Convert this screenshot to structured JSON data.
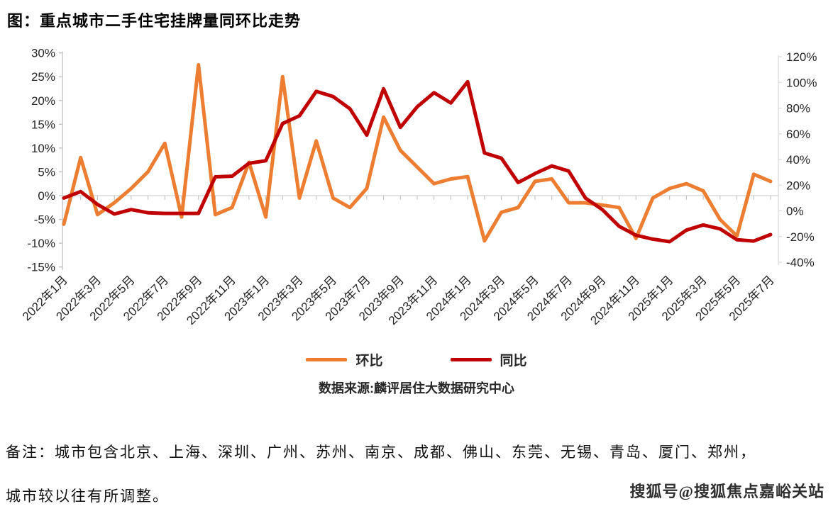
{
  "title": "图：重点城市二手住宅挂牌量同环比走势",
  "legend": {
    "mom_label": "环比",
    "yoy_label": "同比"
  },
  "source": "数据来源:麟评居住大数据研究中心",
  "note": {
    "line1": "备注：城市包含北京、上海、深圳、广州、苏州、南京、成都、佛山、东莞、无锡、青岛、厦门、郑州，",
    "line2": "城市较以往有所调整。"
  },
  "watermark": "搜狐号@搜狐焦点嘉峪关站",
  "colors": {
    "mom": "#ED7D31",
    "yoy": "#C00000",
    "axis_line": "#BFBFBF",
    "zero_line": "#D9D9D9",
    "tick_text": "#262626"
  },
  "chart_data": {
    "type": "line",
    "title": "图：重点城市二手住宅挂牌量同环比走势",
    "x": [
      "2022年1月",
      "2022年2月",
      "2022年3月",
      "2022年4月",
      "2022年5月",
      "2022年6月",
      "2022年7月",
      "2022年8月",
      "2022年9月",
      "2022年10月",
      "2022年11月",
      "2022年12月",
      "2023年1月",
      "2023年2月",
      "2023年3月",
      "2023年4月",
      "2023年5月",
      "2023年6月",
      "2023年7月",
      "2023年8月",
      "2023年9月",
      "2023年10月",
      "2023年11月",
      "2023年12月",
      "2024年1月",
      "2024年2月",
      "2024年3月",
      "2024年4月",
      "2024年5月",
      "2024年6月",
      "2024年7月",
      "2024年8月",
      "2024年9月",
      "2024年10月",
      "2024年11月",
      "2024年12月",
      "2025年1月",
      "2025年2月",
      "2025年3月",
      "2025年4月",
      "2025年5月",
      "2025年6月",
      "2025年7月"
    ],
    "x_axis_tick_labels": [
      "2022年1月",
      "2022年3月",
      "2022年5月",
      "2022年7月",
      "2022年9月",
      "2022年11月",
      "2023年1月",
      "2023年3月",
      "2023年5月",
      "2023年7月",
      "2023年9月",
      "2023年11月",
      "2024年1月",
      "2024年3月",
      "2024年5月",
      "2024年7月",
      "2024年9月",
      "2024年11月",
      "2025年1月",
      "2025年3月",
      "2025年5月",
      "2025年7月"
    ],
    "series": [
      {
        "name": "环比",
        "axis": "left",
        "color": "#ED7D31",
        "unit": "%",
        "values": [
          -6,
          8,
          -4,
          -1.5,
          1.5,
          5,
          11,
          -4.5,
          27.5,
          -4,
          -2.5,
          7,
          -4.5,
          25,
          -0.5,
          11.5,
          -0.5,
          -2.5,
          1.5,
          16.5,
          9.5,
          6,
          2.5,
          3.5,
          4,
          -9.5,
          -3.5,
          -2.5,
          3,
          3.5,
          -1.5,
          -1.5,
          -2,
          -2.5,
          -9,
          -0.5,
          1.5,
          2.5,
          1,
          -5,
          -8.5,
          4.5,
          3
        ]
      },
      {
        "name": "同比",
        "axis": "right",
        "color": "#C00000",
        "unit": "%",
        "values": [
          10,
          15,
          5,
          -2.5,
          1,
          -1.5,
          -2,
          -2,
          -2,
          26.5,
          27,
          37,
          39,
          68,
          74,
          93,
          89,
          79.5,
          59,
          95,
          65,
          81,
          92,
          84,
          100.5,
          45,
          41,
          22,
          29,
          35,
          31,
          10,
          1,
          -12,
          -19,
          -22,
          -24,
          -15,
          -11,
          -14,
          -22.5,
          -23.5,
          -18.5
        ]
      }
    ],
    "left_axis": {
      "tick_labels": [
        "30%",
        "25%",
        "20%",
        "15%",
        "10%",
        "5%",
        "0%",
        "-5%",
        "-10%",
        "-15%"
      ],
      "min": -15,
      "max": 30
    },
    "right_axis": {
      "tick_labels": [
        "120%",
        "100%",
        "80%",
        "60%",
        "40%",
        "20%",
        "0%",
        "-20%",
        "-40%"
      ],
      "min": -40,
      "max": 120
    },
    "legend_position": "bottom",
    "grid": "zero-line-only"
  }
}
